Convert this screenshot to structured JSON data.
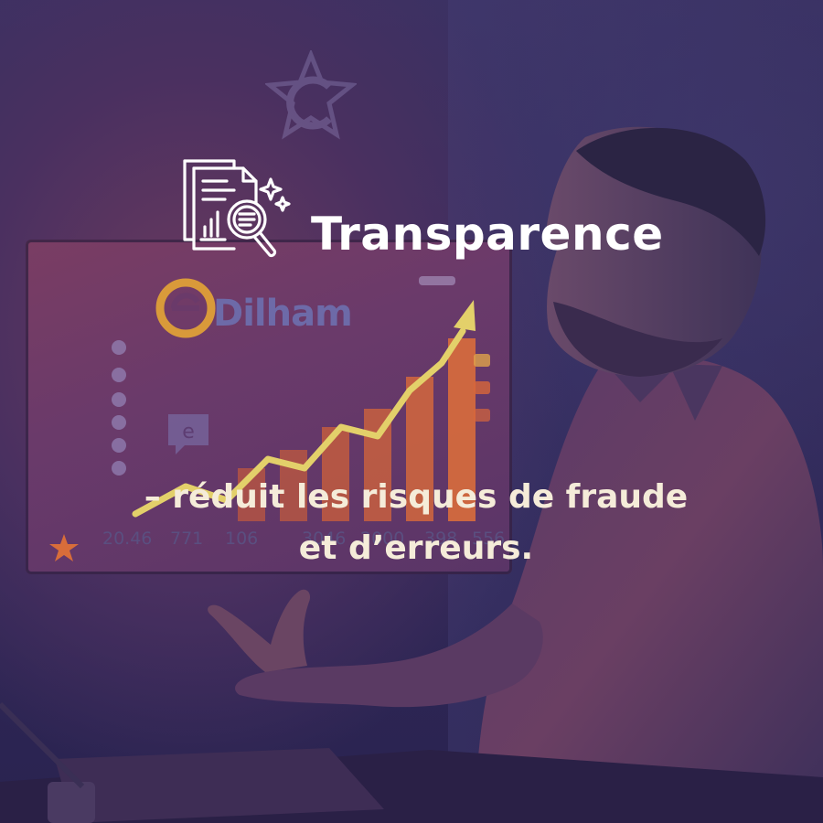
{
  "headline": {
    "icon": "document-chart-magnifier-icon",
    "title": "Transparence"
  },
  "subtitle": {
    "line1": "– réduit les risques de fraude",
    "line2": "et d’erreurs."
  },
  "background_screen": {
    "brand_text": "Dilham",
    "numbers": [
      "20.46",
      "771",
      "106",
      "3046",
      "2000",
      "398",
      "556"
    ]
  },
  "colors": {
    "text_primary": "#ffffff",
    "text_secondary": "#f5ecd9",
    "overlay_tint": "#3b3163",
    "accent_orange": "#d8663a",
    "accent_yellow": "#e8d66a"
  }
}
